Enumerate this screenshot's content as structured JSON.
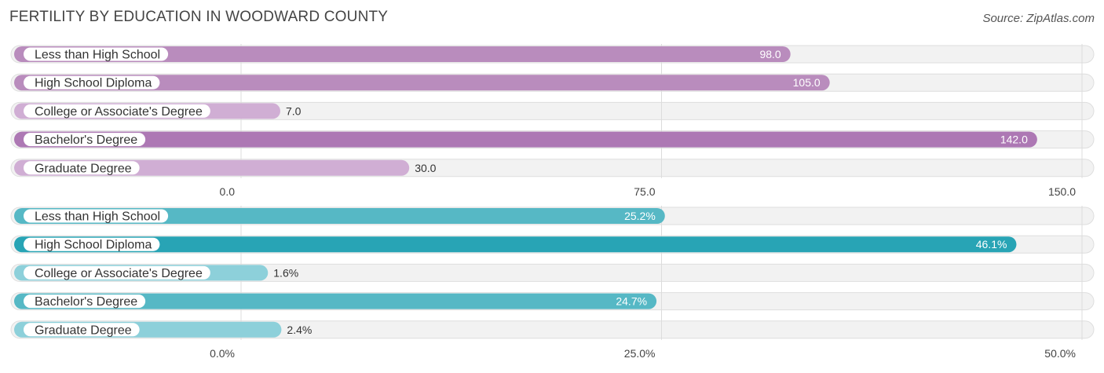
{
  "header": {
    "title": "FERTILITY BY EDUCATION IN WOODWARD COUNTY",
    "source": "Source: ZipAtlas.com"
  },
  "chart_data": [
    {
      "type": "bar",
      "orientation": "horizontal",
      "categories": [
        "Less than High School",
        "High School Diploma",
        "College or Associate's Degree",
        "Bachelor's Degree",
        "Graduate Degree"
      ],
      "values": [
        98.0,
        105.0,
        7.0,
        142.0,
        30.0
      ],
      "value_labels": [
        "98.0",
        "105.0",
        "7.0",
        "142.0",
        "30.0"
      ],
      "xlim": [
        0,
        150
      ],
      "ticks": [
        0,
        75,
        150
      ],
      "tick_labels": [
        "0.0",
        "75.0",
        "150.0"
      ],
      "grid": true,
      "colors": {
        "bar": "#b98cbd",
        "bar_strong": "#ad78b4",
        "bar_light": "#d0aed4"
      }
    },
    {
      "type": "bar",
      "orientation": "horizontal",
      "categories": [
        "Less than High School",
        "High School Diploma",
        "College or Associate's Degree",
        "Bachelor's Degree",
        "Graduate Degree"
      ],
      "values": [
        25.2,
        46.1,
        1.6,
        24.7,
        2.4
      ],
      "value_labels": [
        "25.2%",
        "46.1%",
        "1.6%",
        "24.7%",
        "2.4%"
      ],
      "xlim": [
        0,
        50
      ],
      "ticks": [
        0,
        25,
        50
      ],
      "tick_labels": [
        "0.0%",
        "25.0%",
        "50.0%"
      ],
      "grid": true,
      "colors": {
        "bar": "#56b8c5",
        "bar_strong": "#28a4b5",
        "bar_light": "#8dd0da"
      }
    }
  ]
}
